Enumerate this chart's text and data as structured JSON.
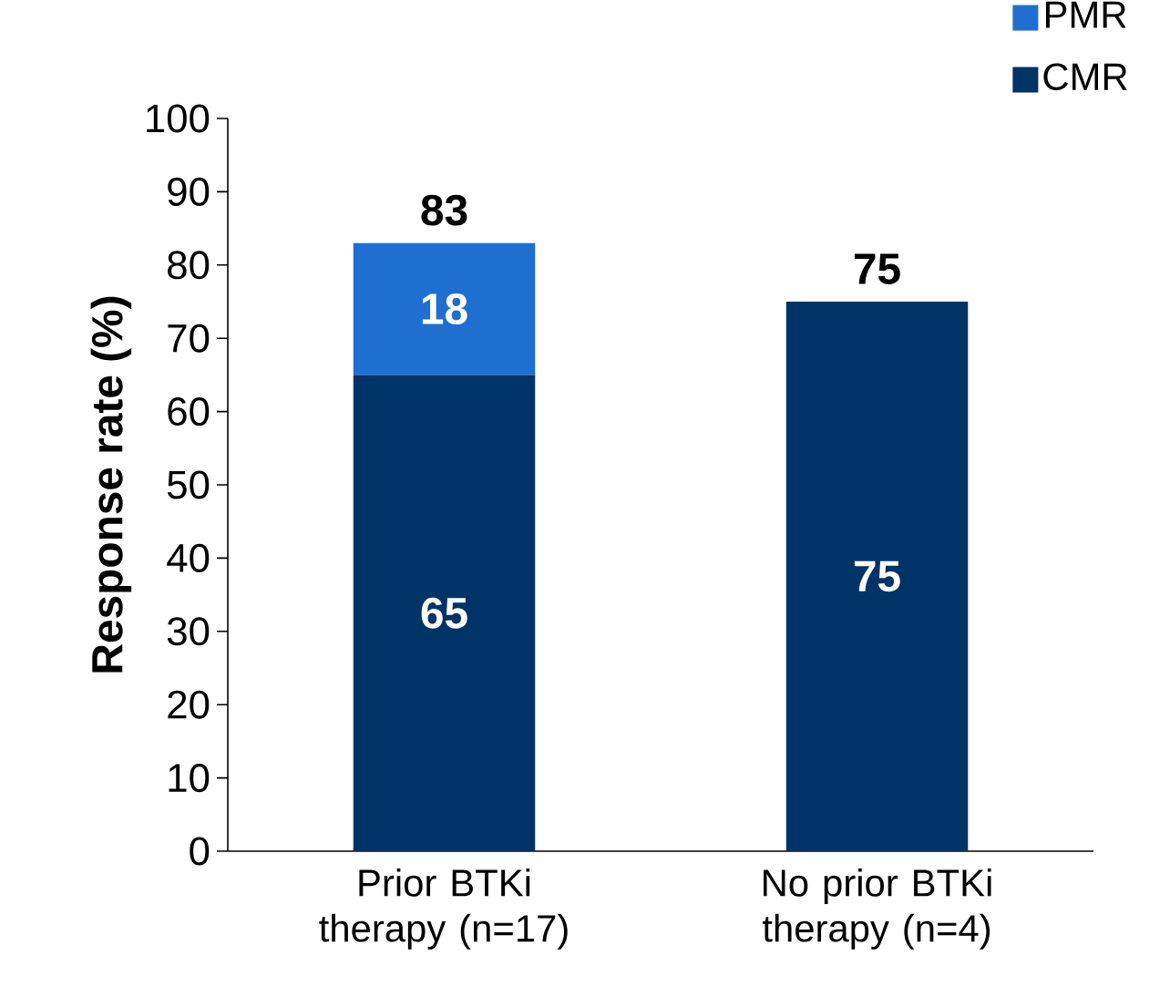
{
  "chart_data": {
    "type": "bar",
    "stacked": true,
    "ylabel": "Response rate (%)",
    "categories": [
      "Prior BTKi therapy (n=17)",
      "No prior BTKi therapy (n=4)"
    ],
    "series": [
      {
        "name": "CMR",
        "color": "#003366",
        "values": [
          65,
          75
        ]
      },
      {
        "name": "PMR",
        "color": "#1f6fd1",
        "values": [
          18,
          null
        ]
      }
    ],
    "totals": [
      "83",
      "75"
    ],
    "data_labels": true,
    "ylim": [
      0,
      100
    ],
    "yticks": [
      0,
      10,
      20,
      30,
      40,
      50,
      60,
      70,
      80,
      90,
      100
    ],
    "legend": "top right"
  }
}
